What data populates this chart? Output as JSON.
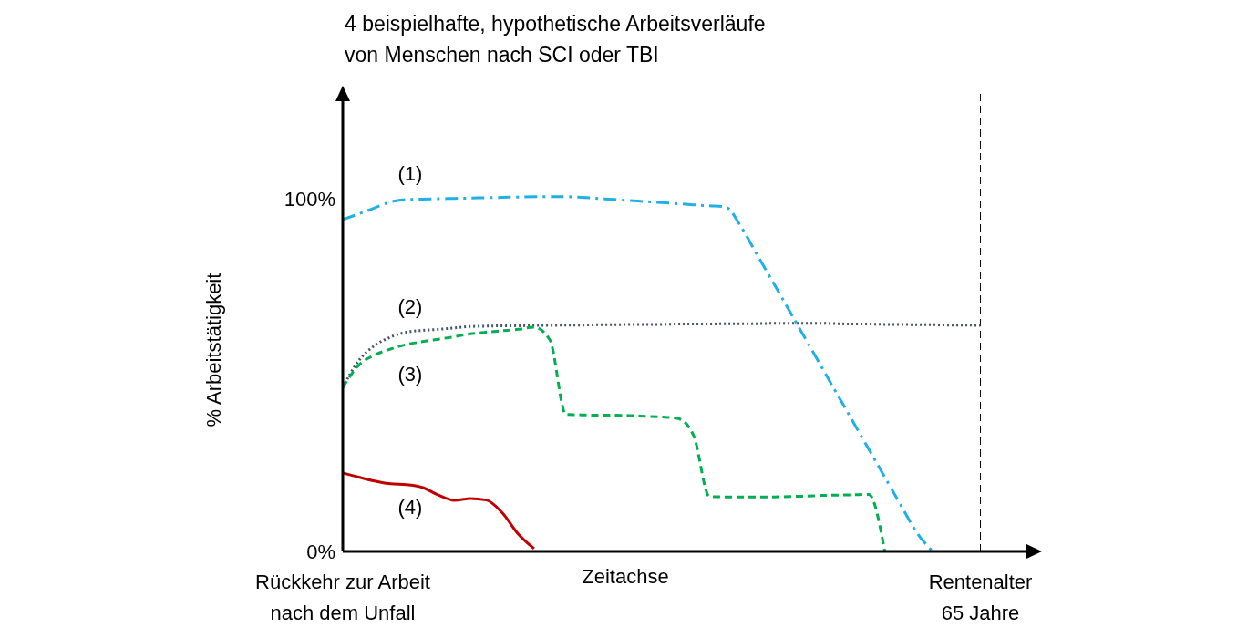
{
  "chart_data": {
    "type": "line",
    "title": "4 beispielhafte, hypothetische Arbeitsverläufe\nvon Menschen nach SCI oder TBI",
    "xlabel": "Zeitachse",
    "ylabel": "% Arbeitstätigkeit",
    "categories": [
      "Rückkehr zur Arbeit\nnach dem Unfall",
      null,
      null,
      null,
      null,
      null,
      null,
      null,
      null,
      null,
      null,
      null,
      null,
      null,
      null,
      null,
      null,
      null,
      null,
      null,
      null,
      null,
      null,
      null,
      null,
      null,
      null,
      null,
      null,
      null,
      null,
      null,
      null,
      null,
      null,
      null,
      null,
      null,
      null,
      null,
      "Rentenalter\n65 Jahre",
      null,
      null,
      null
    ],
    "ylim": [
      0,
      130
    ],
    "yticks": [
      {
        "value": 0,
        "label": "0%"
      },
      {
        "value": 100,
        "label": "100%"
      }
    ],
    "grid": false,
    "ref_lines": [
      {
        "axis": "x",
        "value": "Rentenalter\n65 Jahre",
        "label": null,
        "color": "#000000",
        "line_style": "dashed"
      }
    ],
    "series": [
      {
        "name": "(1)",
        "color": "#1fb0e6",
        "line_style": "dashdot",
        "values": [
          94.3,
          95.9,
          97.6,
          99.3,
          100,
          100.1,
          100.2,
          100.3,
          100.4,
          100.5,
          100.6,
          100.7,
          100.8,
          100.8,
          100.8,
          100.6,
          100.3,
          100.0,
          99.7,
          99.4,
          99.1,
          98.8,
          98.5,
          98.2,
          97.9,
          92.1,
          84.2,
          76.4,
          68.5,
          60.6,
          52.7,
          44.8,
          36.9,
          29.0,
          21.1,
          13.2,
          5.4,
          0,
          null,
          null,
          null,
          null,
          null,
          null
        ]
      },
      {
        "name": "(2)",
        "color": "#44546a",
        "line_style": "dotted",
        "values": [
          46.6,
          54.2,
          58.5,
          60.9,
          62.3,
          62.8,
          63.1,
          63.5,
          63.9,
          64.0,
          64.1,
          64.1,
          64.2,
          64.2,
          64.3,
          64.3,
          64.4,
          64.4,
          64.5,
          64.5,
          64.5,
          64.6,
          64.6,
          64.6,
          64.7,
          64.7,
          64.7,
          64.8,
          64.8,
          64.8,
          64.8,
          64.7,
          64.6,
          64.6,
          64.5,
          64.5,
          64.4,
          64.4,
          64.3,
          64.3,
          64.2,
          null,
          null,
          null
        ]
      },
      {
        "name": "(3)",
        "color": "#00b050",
        "line_style": "dashed",
        "values": [
          46.6,
          52.9,
          55.8,
          57.5,
          58.8,
          59.6,
          60.3,
          61.0,
          61.8,
          62.3,
          62.7,
          63.1,
          63.7,
          60,
          38.9,
          38.8,
          38.7,
          38.7,
          38.6,
          38.4,
          38.2,
          37.8,
          33,
          15.6,
          15.5,
          15.5,
          15.5,
          15.5,
          15.6,
          15.7,
          15.9,
          16.0,
          16.1,
          16.2,
          0,
          null,
          null,
          null,
          null,
          null,
          null,
          null,
          null,
          null
        ]
      },
      {
        "name": "(4)",
        "color": "#c00000",
        "line_style": "solid",
        "values": [
          22.3,
          21.1,
          20.0,
          19.2,
          19.0,
          18.2,
          16.0,
          14.5,
          15.0,
          14.6,
          11.0,
          5.0,
          0.8,
          null,
          null,
          null,
          null,
          null,
          null,
          null,
          null,
          null,
          null,
          null,
          null,
          null,
          null,
          null,
          null,
          null,
          null,
          null,
          null,
          null,
          null,
          null,
          null,
          null,
          null,
          null,
          null,
          null,
          null,
          null
        ]
      }
    ]
  }
}
